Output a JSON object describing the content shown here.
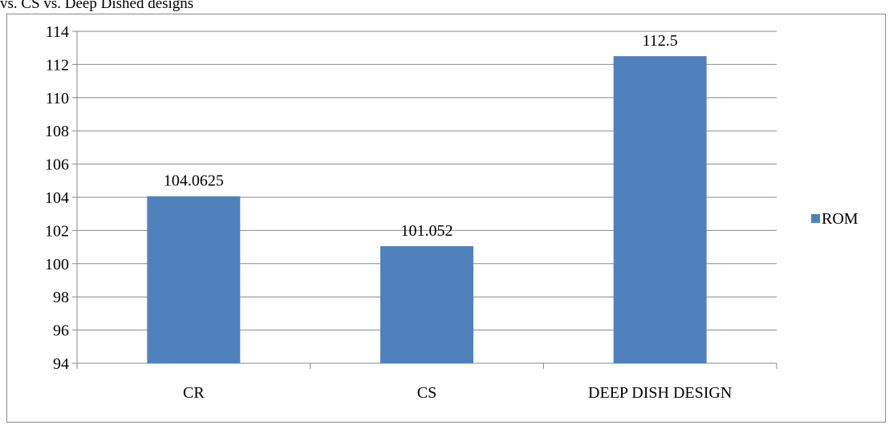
{
  "caption": "vs. CS vs. Deep Dished designs",
  "chart_data": {
    "type": "bar",
    "title": "",
    "xlabel": "",
    "ylabel": "",
    "categories": [
      "CR",
      "CS",
      "DEEP DISH DESIGN"
    ],
    "series": [
      {
        "name": "ROM",
        "values": [
          104.0625,
          101.052,
          112.5
        ],
        "color": "#4F81BD"
      }
    ],
    "data_labels": [
      "104.0625",
      "101.052",
      "112.5"
    ],
    "ylim": [
      94,
      114
    ],
    "yticks": [
      94,
      96,
      98,
      100,
      102,
      104,
      106,
      108,
      110,
      112,
      114
    ],
    "grid": true,
    "legend_position": "right"
  }
}
